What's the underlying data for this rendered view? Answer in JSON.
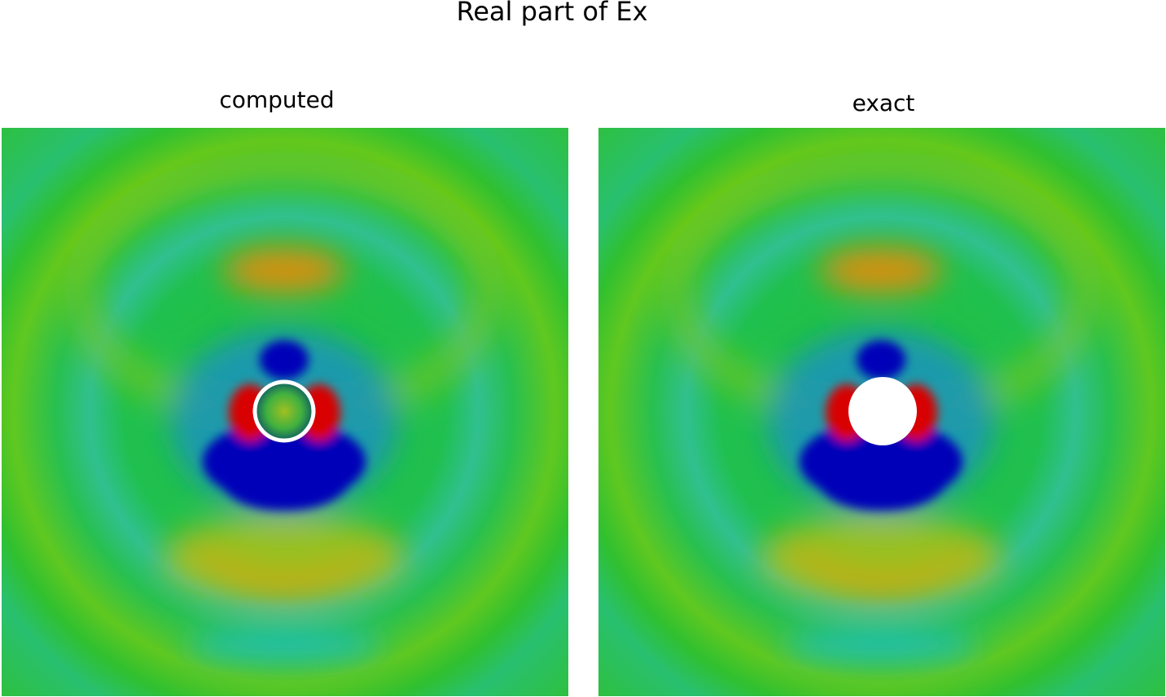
{
  "title": "Real part of Ex",
  "panels": [
    {
      "label": "computed"
    },
    {
      "label": "exact"
    }
  ]
}
